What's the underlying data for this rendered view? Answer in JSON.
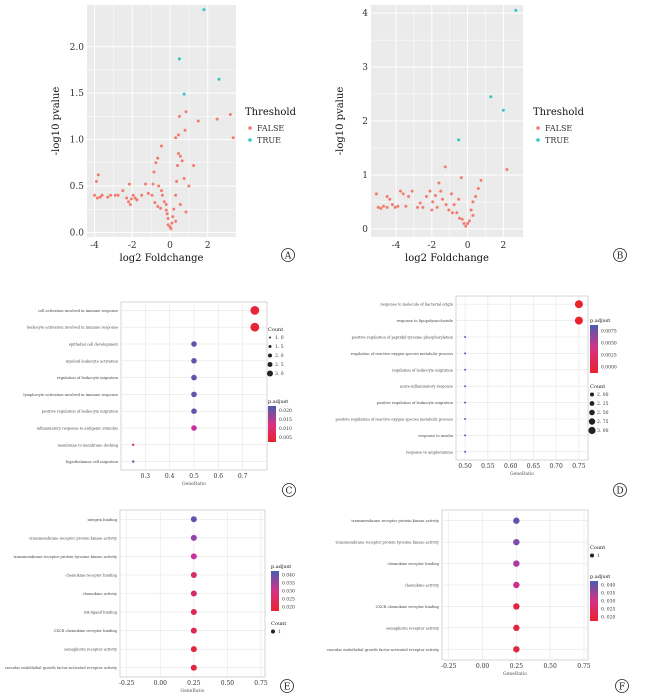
{
  "chart_data": [
    {
      "panel": "A",
      "type": "scatter",
      "xlabel": "log2 Foldchange",
      "ylabel": "-log10 pvalue",
      "xlim": [
        -4.4,
        3.5
      ],
      "ylim": [
        -0.05,
        2.45
      ],
      "xticks": [
        -4,
        -2,
        0,
        2
      ],
      "yticks": [
        0.0,
        0.5,
        1.0,
        1.5,
        2.0
      ],
      "ytick_labels": [
        "0.0",
        "0.5",
        "1.0",
        "1.5",
        "2.0"
      ],
      "grid": true,
      "legend": {
        "title": "Threshold",
        "position": "right",
        "entries": [
          {
            "label": "FALSE",
            "color": "#f27c6f"
          },
          {
            "label": "TRUE",
            "color": "#2fc7c0"
          }
        ]
      },
      "series": [
        {
          "name": "FALSE",
          "color": "#f27c6f",
          "points": [
            [
              -4.0,
              0.4
            ],
            [
              -3.85,
              0.37
            ],
            [
              -3.7,
              0.38
            ],
            [
              -3.6,
              0.4
            ],
            [
              -3.8,
              0.62
            ],
            [
              -3.9,
              0.55
            ],
            [
              -3.3,
              0.38
            ],
            [
              -3.15,
              0.4
            ],
            [
              -2.9,
              0.4
            ],
            [
              -2.75,
              0.4
            ],
            [
              -2.5,
              0.45
            ],
            [
              -2.3,
              0.37
            ],
            [
              -2.2,
              0.33
            ],
            [
              -2.05,
              0.36
            ],
            [
              -1.95,
              0.4
            ],
            [
              -1.85,
              0.37
            ],
            [
              -1.75,
              0.35
            ],
            [
              -2.1,
              0.3
            ],
            [
              -2.15,
              0.52
            ],
            [
              -1.5,
              0.4
            ],
            [
              -1.3,
              0.52
            ],
            [
              -1.15,
              0.42
            ],
            [
              -0.95,
              0.4
            ],
            [
              -0.8,
              0.32
            ],
            [
              -0.65,
              0.28
            ],
            [
              -0.5,
              0.26
            ],
            [
              -0.85,
              0.65
            ],
            [
              -0.75,
              0.75
            ],
            [
              -0.65,
              0.8
            ],
            [
              -0.9,
              0.52
            ],
            [
              -0.6,
              0.5
            ],
            [
              -0.45,
              0.45
            ],
            [
              -0.4,
              0.4
            ],
            [
              -0.3,
              0.33
            ],
            [
              -0.2,
              0.3
            ],
            [
              -0.2,
              0.24
            ],
            [
              -0.15,
              0.2
            ],
            [
              -0.1,
              0.15
            ],
            [
              -0.1,
              0.08
            ],
            [
              0.0,
              0.06
            ],
            [
              0.05,
              0.04
            ],
            [
              0.1,
              0.1
            ],
            [
              0.15,
              0.17
            ],
            [
              0.2,
              0.25
            ],
            [
              0.3,
              0.4
            ],
            [
              0.35,
              0.55
            ],
            [
              0.4,
              0.72
            ],
            [
              0.45,
              0.85
            ],
            [
              0.55,
              0.82
            ],
            [
              0.65,
              0.77
            ],
            [
              0.75,
              0.58
            ],
            [
              0.3,
              1.02
            ],
            [
              0.45,
              1.05
            ],
            [
              0.5,
              1.25
            ],
            [
              0.8,
              1.1
            ],
            [
              0.85,
              1.3
            ],
            [
              0.3,
              0.12
            ],
            [
              0.55,
              0.3
            ],
            [
              0.85,
              0.22
            ],
            [
              1.0,
              0.5
            ],
            [
              1.25,
              0.72
            ],
            [
              1.5,
              1.2
            ],
            [
              2.5,
              1.22
            ],
            [
              3.2,
              1.27
            ],
            [
              3.35,
              1.02
            ],
            [
              -0.45,
              0.93
            ]
          ]
        },
        {
          "name": "TRUE",
          "color": "#2fc7c0",
          "points": [
            [
              0.5,
              1.87
            ],
            [
              0.75,
              1.49
            ],
            [
              1.8,
              2.4
            ],
            [
              2.6,
              1.65
            ]
          ]
        }
      ]
    },
    {
      "panel": "B",
      "type": "scatter",
      "xlabel": "log2 Foldchange",
      "ylabel": "-log10 pvalue",
      "xlim": [
        -5.4,
        3.1
      ],
      "ylim": [
        -0.15,
        4.15
      ],
      "xticks": [
        -4,
        -2,
        0,
        2
      ],
      "yticks": [
        0,
        1,
        2,
        3,
        4
      ],
      "grid": true,
      "legend": {
        "title": "Threshold",
        "position": "right",
        "entries": [
          {
            "label": "FALSE",
            "color": "#f27c6f"
          },
          {
            "label": "TRUE",
            "color": "#2fc7c0"
          }
        ]
      },
      "series": [
        {
          "name": "FALSE",
          "color": "#f27c6f",
          "points": [
            [
              -5.1,
              0.65
            ],
            [
              -5.0,
              0.4
            ],
            [
              -4.85,
              0.38
            ],
            [
              -4.7,
              0.42
            ],
            [
              -4.5,
              0.4
            ],
            [
              -4.35,
              0.55
            ],
            [
              -4.2,
              0.45
            ],
            [
              -4.05,
              0.4
            ],
            [
              -3.9,
              0.42
            ],
            [
              -3.75,
              0.7
            ],
            [
              -3.6,
              0.65
            ],
            [
              -3.45,
              0.42
            ],
            [
              -3.3,
              0.6
            ],
            [
              -3.1,
              0.7
            ],
            [
              -2.8,
              0.4
            ],
            [
              -2.65,
              0.48
            ],
            [
              -2.5,
              0.4
            ],
            [
              -2.3,
              0.6
            ],
            [
              -2.1,
              0.7
            ],
            [
              -1.95,
              0.5
            ],
            [
              -1.8,
              0.62
            ],
            [
              -1.6,
              0.85
            ],
            [
              -1.4,
              0.55
            ],
            [
              -1.2,
              0.45
            ],
            [
              -1.05,
              0.35
            ],
            [
              -0.9,
              0.65
            ],
            [
              -0.75,
              0.45
            ],
            [
              -0.6,
              0.3
            ],
            [
              -0.45,
              0.2
            ],
            [
              -0.3,
              0.18
            ],
            [
              -0.2,
              0.1
            ],
            [
              -0.1,
              0.05
            ],
            [
              0.0,
              0.1
            ],
            [
              0.1,
              0.15
            ],
            [
              0.2,
              0.35
            ],
            [
              0.3,
              0.5
            ],
            [
              0.45,
              0.6
            ],
            [
              0.6,
              0.75
            ],
            [
              0.75,
              0.9
            ],
            [
              -1.25,
              1.15
            ],
            [
              -0.35,
              0.95
            ],
            [
              -1.5,
              0.7
            ],
            [
              -2.0,
              0.35
            ],
            [
              -0.85,
              0.3
            ],
            [
              -1.7,
              0.4
            ],
            [
              -0.5,
              0.55
            ],
            [
              2.2,
              1.1
            ],
            [
              0.3,
              0.25
            ],
            [
              -4.5,
              0.6
            ]
          ]
        },
        {
          "name": "TRUE",
          "color": "#2fc7c0",
          "points": [
            [
              -0.5,
              1.65
            ],
            [
              1.3,
              2.45
            ],
            [
              2.0,
              2.2
            ],
            [
              2.7,
              4.05
            ]
          ]
        }
      ]
    },
    {
      "panel": "C",
      "type": "scatter",
      "xlabel": "GeneRatio",
      "xlim": [
        0.2,
        0.8
      ],
      "xticks": [
        0.3,
        0.4,
        0.5,
        0.6,
        0.7
      ],
      "ytick_labels": [
        "cell activation involved in immune response",
        "leukocyte activation involved in immune response",
        "epithelial cell development",
        "myeloid leukocyte activation",
        "regulation of leukocyte migration",
        "lymphocyte activation involved in immune response",
        "positive regulation of leukocyte migration",
        "inflammatory response to antigenic stimulus",
        "membrane to membrane docking",
        "hypothalamus cell migration"
      ],
      "points": [
        [
          0.75,
          3.0,
          0.003
        ],
        [
          0.75,
          3.0,
          0.003
        ],
        [
          0.5,
          2.0,
          0.02
        ],
        [
          0.5,
          2.0,
          0.02
        ],
        [
          0.5,
          2.0,
          0.02
        ],
        [
          0.5,
          2.0,
          0.02
        ],
        [
          0.5,
          2.0,
          0.02
        ],
        [
          0.5,
          2.0,
          0.012
        ],
        [
          0.25,
          1.0,
          0.003
        ],
        [
          0.25,
          1.0,
          0.02
        ]
      ],
      "point_fields": [
        "gene_ratio",
        "count",
        "p_adjust"
      ],
      "legend_count": {
        "title": "Count",
        "labels": [
          "1. 0",
          "1. 5",
          "2. 0",
          "2. 5",
          "3. 0"
        ]
      },
      "legend_color": {
        "title": "p.adjust",
        "labels": [
          "0.020",
          "0.015",
          "0.010",
          "0.005"
        ]
      }
    },
    {
      "panel": "D",
      "type": "scatter",
      "xlabel": "GeneRatio",
      "xlim": [
        0.48,
        0.77
      ],
      "xticks": [
        0.5,
        0.55,
        0.6,
        0.65,
        0.7,
        0.75
      ],
      "xtick_labels": [
        "0.50",
        "0.55",
        "0.60",
        "0.65",
        "0.70",
        "0.75"
      ],
      "ytick_labels": [
        "response to molecule of bacterial origin",
        "response to lipopolysaccharide",
        "positive regulation of peptidyl-tyrosine phosphorylation",
        "regulation of reactive oxygen species metabolic process",
        "regulation of leukocyte migration",
        "acute inflammatory response",
        "positive regulation of leukocyte migration",
        "positive regulation of reactive oxygen species metabolic process",
        "response to insulin",
        "response to amphetamine"
      ],
      "points": [
        [
          0.75,
          3.0,
          0.0
        ],
        [
          0.75,
          3.0,
          0.0
        ],
        [
          0.5,
          2.0,
          0.01
        ],
        [
          0.5,
          2.0,
          0.01
        ],
        [
          0.5,
          2.0,
          0.01
        ],
        [
          0.5,
          2.0,
          0.01
        ],
        [
          0.5,
          2.0,
          0.01
        ],
        [
          0.5,
          2.0,
          0.01
        ],
        [
          0.5,
          2.0,
          0.01
        ],
        [
          0.5,
          2.0,
          0.01
        ]
      ],
      "point_fields": [
        "gene_ratio",
        "count",
        "p_adjust"
      ],
      "legend_count": {
        "title": "Count",
        "labels": [
          "2. 00",
          "2. 25",
          "2. 50",
          "2. 75",
          "3. 00"
        ]
      },
      "legend_color": {
        "title": "p.adjust",
        "labels": [
          "0.0075",
          "0.0050",
          "0.0025",
          "0.0000"
        ]
      }
    },
    {
      "panel": "E",
      "type": "scatter",
      "xlabel": "GeneRatio",
      "xlim": [
        -0.3,
        0.78
      ],
      "xticks": [
        -0.25,
        0.0,
        0.25,
        0.5,
        0.75
      ],
      "xtick_labels": [
        "-0.25",
        "0.00",
        "0.25",
        "0.50",
        "0.75"
      ],
      "ytick_labels": [
        "integrin binding",
        "transmembrane receptor protein kinase activity",
        "transmembrane receptor protein tyrosine kinase activity",
        "chemokine receptor binding",
        "chemokine activity",
        "SH-ligand binding",
        "CXCR chemokine receptor binding",
        "semaphorin receptor activity",
        "vascular endothelial growth factor-activated receptor activity"
      ],
      "points": [
        [
          0.25,
          1,
          0.04
        ],
        [
          0.25,
          1,
          0.035
        ],
        [
          0.25,
          1,
          0.03
        ],
        [
          0.25,
          1,
          0.025
        ],
        [
          0.25,
          1,
          0.025
        ],
        [
          0.25,
          1,
          0.022
        ],
        [
          0.25,
          1,
          0.022
        ],
        [
          0.25,
          1,
          0.02
        ],
        [
          0.25,
          1,
          0.02
        ]
      ],
      "point_fields": [
        "gene_ratio",
        "count",
        "p_adjust"
      ],
      "legend_count": {
        "title": "Count",
        "labels": [
          "1"
        ]
      },
      "legend_color": {
        "title": "p.adjust",
        "labels": [
          "0.040",
          "0.035",
          "0.030",
          "0.025",
          "0.020"
        ]
      }
    },
    {
      "panel": "F",
      "type": "scatter",
      "xlabel": "GeneRatio",
      "xlim": [
        -0.3,
        0.78
      ],
      "xticks": [
        -0.25,
        0.0,
        0.25,
        0.5,
        0.75
      ],
      "xtick_labels": [
        "-0.25",
        "0.00",
        "0.25",
        "0.50",
        "0.75"
      ],
      "ytick_labels": [
        "transmembrane receptor protein kinase activity",
        "transmembrane receptor protein tyrosine kinase activity",
        "chemokine receptor binding",
        "chemokine activity",
        "CXCR chemokine receptor binding",
        "semaphorin receptor activity",
        "vascular endothelial growth factor-activated receptor activity"
      ],
      "points": [
        [
          0.25,
          1,
          0.04
        ],
        [
          0.25,
          1,
          0.037
        ],
        [
          0.25,
          1,
          0.033
        ],
        [
          0.25,
          1,
          0.028
        ],
        [
          0.25,
          1,
          0.02
        ],
        [
          0.25,
          1,
          0.02
        ],
        [
          0.25,
          1,
          0.02
        ]
      ],
      "point_fields": [
        "gene_ratio",
        "count",
        "p_adjust"
      ],
      "legend_count": {
        "title": "Count",
        "labels": [
          "1"
        ]
      },
      "legend_color": {
        "title": "p.adjust",
        "labels": [
          "0. 040",
          "0. 035",
          "0. 030",
          "0. 025",
          "0. 020"
        ]
      }
    }
  ],
  "panel_letters": [
    "A",
    "B",
    "C",
    "D",
    "E",
    "F"
  ],
  "colors": {
    "false_point": "#f27c6f",
    "true_point": "#2fc7c0",
    "panel_bg": "#ebebeb",
    "grid": "#ffffff",
    "dot_bg": "#ffffff",
    "dot_grid": "#e6e6e6",
    "p_low": "#e8232d",
    "p_mid": "#d63285",
    "p_high": "#4a5bb0"
  }
}
